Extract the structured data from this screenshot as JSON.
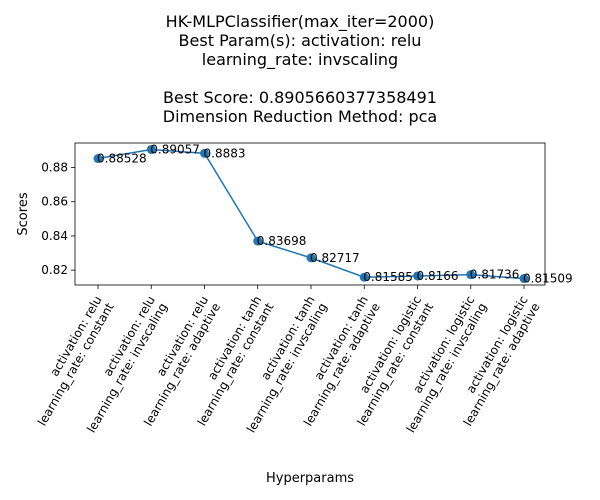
{
  "chart_data": {
    "type": "line",
    "title_lines": [
      "HK-MLPClassifier(max_iter=2000)",
      "Best Param(s): activation: relu",
      "learning_rate: invscaling",
      "",
      "Best Score: 0.8905660377358491",
      "Dimension Reduction Method: pca"
    ],
    "xlabel": "Hyperparams",
    "ylabel": "Scores",
    "categories": [
      [
        "activation: relu",
        "learning_rate: constant"
      ],
      [
        "activation: relu",
        "learning_rate: invscaling"
      ],
      [
        "activation: relu",
        "learning_rate: adaptive"
      ],
      [
        "activation: tanh",
        "learning_rate: constant"
      ],
      [
        "activation: tanh",
        "learning_rate: invscaling"
      ],
      [
        "activation: tanh",
        "learning_rate: adaptive"
      ],
      [
        "activation: logistic",
        "learning_rate: constant"
      ],
      [
        "activation: logistic",
        "learning_rate: invscaling"
      ],
      [
        "activation: logistic",
        "learning_rate: adaptive"
      ]
    ],
    "values": [
      0.88528,
      0.89057,
      0.8883,
      0.83698,
      0.82717,
      0.81585,
      0.8166,
      0.81736,
      0.81509
    ],
    "value_labels": [
      "0.88528",
      "0.89057",
      "0.8883",
      "0.83698",
      "0.82717",
      "0.81585",
      "0.8166",
      "0.81736",
      "0.81509"
    ],
    "yticks": [
      0.82,
      0.84,
      0.86,
      0.88
    ],
    "ytick_labels": [
      "0.82",
      "0.84",
      "0.86",
      "0.88"
    ],
    "ylim": [
      0.81131,
      0.89435
    ],
    "color": "#1f77b4",
    "grid": false
  }
}
